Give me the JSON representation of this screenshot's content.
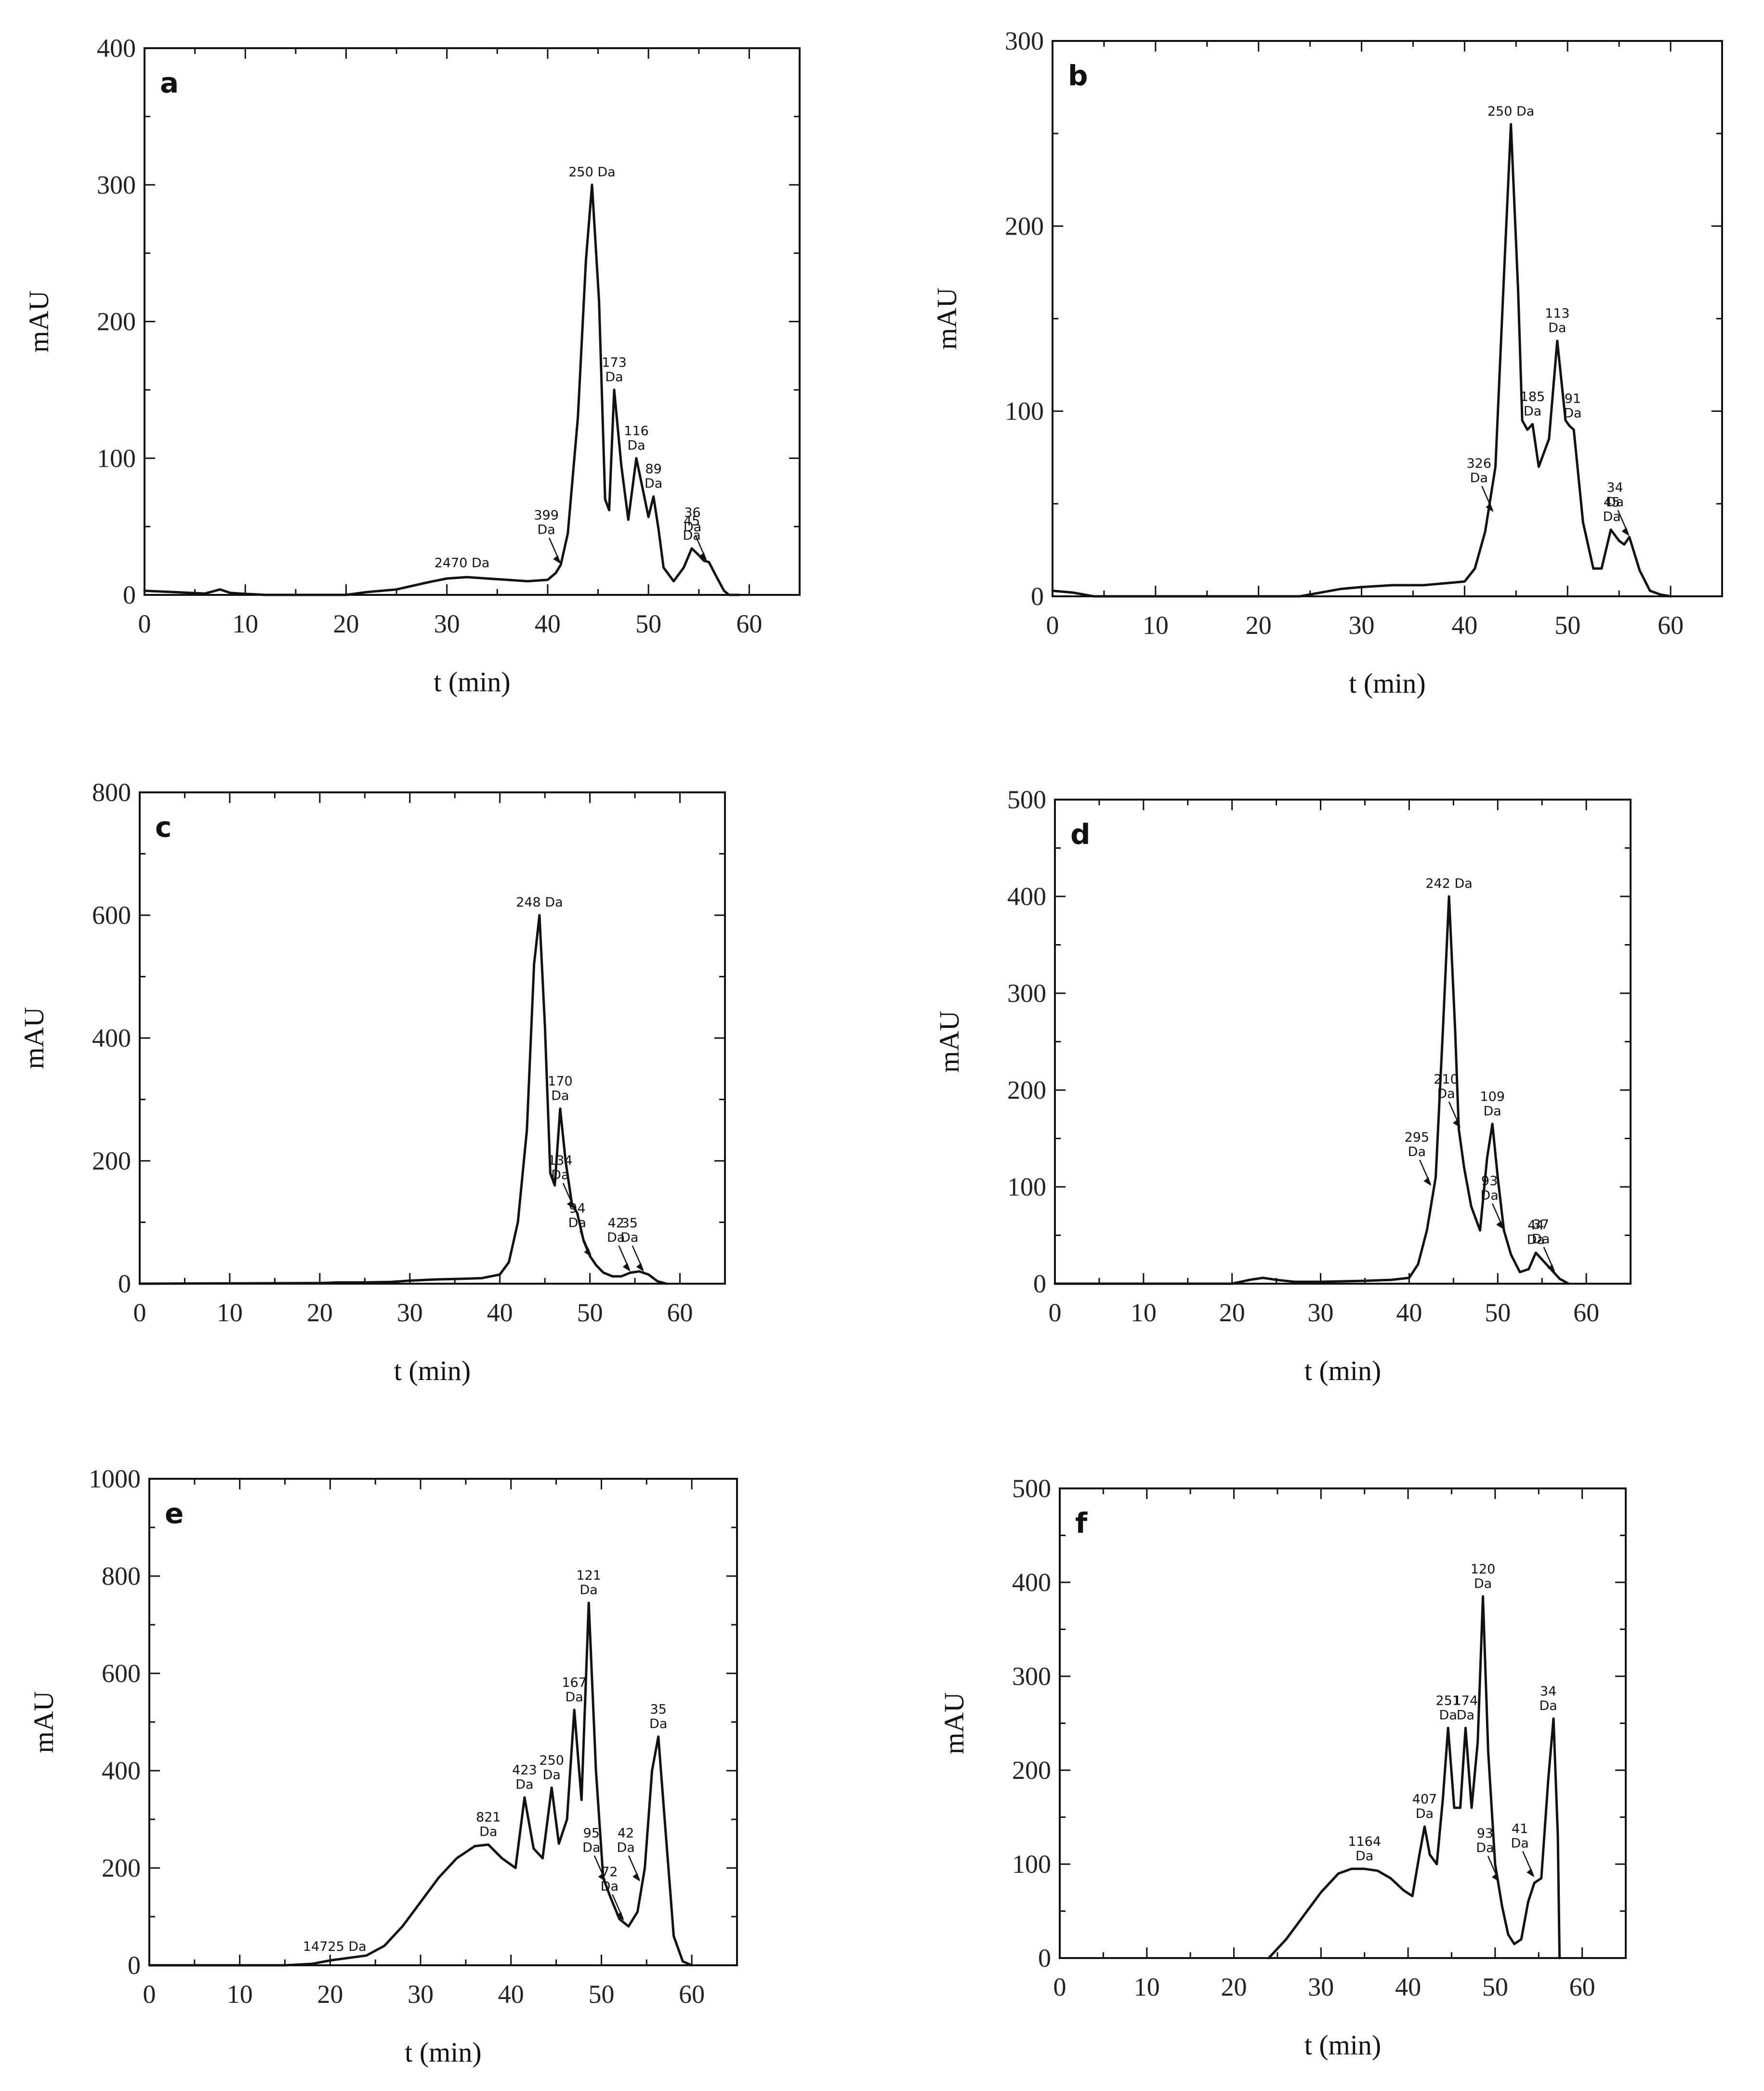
{
  "chart_data": [
    {
      "type": "line",
      "panel_label": "a",
      "xlabel": "t (min)",
      "ylabel": "mAU",
      "xlim": [
        0,
        65
      ],
      "ylim": [
        0,
        400
      ],
      "xticks": [
        0,
        10,
        20,
        30,
        40,
        50,
        60
      ],
      "yticks": [
        0,
        100,
        200,
        300,
        400
      ],
      "series": [
        {
          "x": [
            0,
            3,
            6,
            7.5,
            8.5,
            9.5,
            12,
            20,
            22,
            25,
            28,
            30,
            32,
            34,
            36,
            38,
            40,
            40.8,
            41.3,
            42,
            43,
            43.8,
            44.4,
            45.1,
            45.7,
            46.1,
            46.6,
            47.3,
            48,
            48.8,
            49.5,
            50,
            50.5,
            51,
            51.5,
            52.5,
            53.5,
            54.3,
            55,
            55.5,
            56,
            56.7,
            57.5,
            58,
            59
          ],
          "y": [
            3,
            2,
            1,
            4,
            1.5,
            1,
            0,
            0,
            2,
            4,
            9,
            12,
            13,
            12,
            11,
            10,
            11,
            16,
            22,
            45,
            130,
            245,
            300,
            215,
            70,
            62,
            150,
            95,
            55,
            100,
            75,
            57,
            72,
            48,
            20,
            10,
            20,
            34,
            29,
            25,
            24,
            14,
            3,
            0,
            0
          ]
        }
      ],
      "annotations": [
        {
          "lines": [
            "250 Da"
          ],
          "x": 44.4,
          "y": 300
        },
        {
          "lines": [
            "2470 Da"
          ],
          "x": 31.5,
          "y": 14
        },
        {
          "lines": [
            "173",
            "Da"
          ],
          "x": 46.6,
          "y": 150
        },
        {
          "lines": [
            "116",
            "Da"
          ],
          "x": 48.8,
          "y": 100
        },
        {
          "lines": [
            "89",
            "Da"
          ],
          "x": 50.5,
          "y": 72
        },
        {
          "lines": [
            "45",
            "Da"
          ],
          "x": 54.3,
          "y": 34
        },
        {
          "lines": [
            "399",
            "Da"
          ],
          "x": 41.3,
          "y": 22,
          "arrow": true
        },
        {
          "lines": [
            "36",
            "Da"
          ],
          "x": 55.8,
          "y": 24,
          "arrow": true
        }
      ]
    },
    {
      "type": "line",
      "panel_label": "b",
      "xlabel": "t (min)",
      "ylabel": "mAU",
      "xlim": [
        0,
        65
      ],
      "ylim": [
        0,
        300
      ],
      "xticks": [
        0,
        10,
        20,
        30,
        40,
        50,
        60
      ],
      "yticks": [
        0,
        100,
        200,
        300
      ],
      "series": [
        {
          "x": [
            0,
            2,
            4,
            5,
            24,
            26,
            28,
            30,
            33,
            36,
            38,
            40,
            41,
            42,
            43,
            43.8,
            44.5,
            45.2,
            45.6,
            46.1,
            46.6,
            47.2,
            48.2,
            49,
            49.8,
            50.2,
            50.6,
            51.5,
            52.5,
            53.3,
            54.2,
            55,
            55.5,
            56,
            57,
            58,
            59,
            60
          ],
          "y": [
            3,
            2,
            0,
            0,
            0,
            2,
            4,
            5,
            6,
            6,
            7,
            8,
            15,
            35,
            70,
            170,
            255,
            165,
            95,
            90,
            93,
            70,
            85,
            138,
            95,
            92,
            90,
            40,
            15,
            15,
            36,
            30,
            28,
            32,
            14,
            3,
            1,
            0
          ]
        }
      ],
      "annotations": [
        {
          "lines": [
            "250 Da"
          ],
          "x": 44.5,
          "y": 255
        },
        {
          "lines": [
            "185",
            "Da"
          ],
          "x": 46.6,
          "y": 93
        },
        {
          "lines": [
            "113",
            "Da"
          ],
          "x": 49,
          "y": 138
        },
        {
          "lines": [
            "91",
            "Da"
          ],
          "x": 50.5,
          "y": 92
        },
        {
          "lines": [
            "45",
            "Da"
          ],
          "x": 54.3,
          "y": 36
        },
        {
          "lines": [
            "326",
            "Da"
          ],
          "x": 42.8,
          "y": 45,
          "arrow": true
        },
        {
          "lines": [
            "34",
            "Da"
          ],
          "x": 56,
          "y": 32,
          "arrow": true
        }
      ]
    },
    {
      "type": "line",
      "panel_label": "c",
      "xlabel": "t (min)",
      "ylabel": "mAU",
      "xlim": [
        0,
        65
      ],
      "ylim": [
        0,
        800
      ],
      "xticks": [
        0,
        10,
        20,
        30,
        40,
        50,
        60
      ],
      "yticks": [
        0,
        200,
        400,
        600,
        800
      ],
      "series": [
        {
          "x": [
            0,
            20,
            22,
            25,
            28,
            30,
            33,
            36,
            38,
            40,
            41,
            42,
            43,
            43.8,
            44.4,
            45,
            45.6,
            46.1,
            46.7,
            47.3,
            48,
            48.6,
            49.3,
            50,
            50.7,
            51.5,
            52.5,
            53.5,
            54.5,
            55.5,
            56.5,
            57.5,
            58.5
          ],
          "y": [
            0,
            1,
            2,
            2,
            3,
            5,
            7,
            8,
            9,
            15,
            35,
            100,
            250,
            520,
            600,
            420,
            180,
            160,
            285,
            200,
            130,
            115,
            70,
            45,
            30,
            18,
            12,
            12,
            18,
            20,
            15,
            4,
            0
          ]
        }
      ],
      "annotations": [
        {
          "lines": [
            "248 Da"
          ],
          "x": 44.4,
          "y": 600
        },
        {
          "lines": [
            "170",
            "Da"
          ],
          "x": 46.7,
          "y": 285
        },
        {
          "lines": [
            "134",
            "Da"
          ],
          "x": 48.3,
          "y": 120,
          "arrow": true
        },
        {
          "lines": [
            "94",
            "Da"
          ],
          "x": 50.2,
          "y": 42,
          "arrow": true
        },
        {
          "lines": [
            "42",
            "Da"
          ],
          "x": 54.5,
          "y": 18,
          "arrow": true
        },
        {
          "lines": [
            "35",
            "Da"
          ],
          "x": 56,
          "y": 18,
          "arrow": true
        }
      ]
    },
    {
      "type": "line",
      "panel_label": "d",
      "xlabel": "t (min)",
      "ylabel": "mAU",
      "xlim": [
        0,
        65
      ],
      "ylim": [
        0,
        500
      ],
      "xticks": [
        0,
        10,
        20,
        30,
        40,
        50,
        60
      ],
      "yticks": [
        0,
        100,
        200,
        300,
        400,
        500
      ],
      "series": [
        {
          "x": [
            0,
            20,
            22,
            23.5,
            25,
            27,
            30,
            35,
            38,
            40,
            41,
            42,
            43,
            43.8,
            44.5,
            45.2,
            45.6,
            46.2,
            47,
            48,
            48.8,
            49.4,
            50,
            50.7,
            51.5,
            52.5,
            53.5,
            54.3,
            55,
            56,
            57,
            58
          ],
          "y": [
            0,
            0,
            4,
            6,
            4,
            2,
            2,
            3,
            4,
            6,
            20,
            55,
            110,
            260,
            400,
            260,
            160,
            120,
            80,
            55,
            130,
            165,
            110,
            55,
            30,
            12,
            15,
            32,
            25,
            15,
            5,
            0
          ]
        }
      ],
      "annotations": [
        {
          "lines": [
            "242 Da"
          ],
          "x": 44.5,
          "y": 400
        },
        {
          "lines": [
            "210",
            "Da"
          ],
          "x": 45.8,
          "y": 160,
          "arrow": true
        },
        {
          "lines": [
            "109",
            "Da"
          ],
          "x": 49.4,
          "y": 165
        },
        {
          "lines": [
            "295",
            "Da"
          ],
          "x": 42.5,
          "y": 100,
          "arrow": true
        },
        {
          "lines": [
            "93",
            "Da"
          ],
          "x": 50.7,
          "y": 55,
          "arrow": true
        },
        {
          "lines": [
            "44",
            "Da"
          ],
          "x": 54.3,
          "y": 32
        },
        {
          "lines": [
            "37",
            "Da"
          ],
          "x": 56.5,
          "y": 10,
          "arrow": true
        }
      ]
    },
    {
      "type": "line",
      "panel_label": "e",
      "xlabel": "t (min)",
      "ylabel": "mAU",
      "xlim": [
        0,
        65
      ],
      "ylim": [
        0,
        1000
      ],
      "xticks": [
        0,
        10,
        20,
        30,
        40,
        50,
        60
      ],
      "yticks": [
        0,
        200,
        400,
        600,
        800,
        1000
      ],
      "series": [
        {
          "x": [
            0,
            15,
            18,
            20,
            22,
            24,
            26,
            28,
            30,
            32,
            34,
            36,
            37.5,
            39,
            40.5,
            41.5,
            42.5,
            43.5,
            44.5,
            45.3,
            46.2,
            47,
            47.8,
            48.6,
            49.4,
            50.2,
            51,
            52,
            53,
            54,
            54.8,
            55.6,
            56.3,
            57,
            58,
            59,
            60
          ],
          "y": [
            0,
            0,
            3,
            10,
            15,
            20,
            40,
            80,
            130,
            180,
            220,
            245,
            248,
            220,
            200,
            345,
            240,
            220,
            365,
            250,
            300,
            525,
            340,
            745,
            400,
            180,
            140,
            95,
            80,
            110,
            200,
            400,
            470,
            300,
            60,
            8,
            0
          ]
        }
      ],
      "annotations": [
        {
          "lines": [
            "14725 Da"
          ],
          "x": 20.5,
          "y": 12
        },
        {
          "lines": [
            "821",
            "Da"
          ],
          "x": 37.5,
          "y": 248
        },
        {
          "lines": [
            "423",
            "Da"
          ],
          "x": 41.5,
          "y": 345
        },
        {
          "lines": [
            "250",
            "Da"
          ],
          "x": 44.5,
          "y": 365
        },
        {
          "lines": [
            "167",
            "Da"
          ],
          "x": 47,
          "y": 525
        },
        {
          "lines": [
            "121",
            "Da"
          ],
          "x": 48.6,
          "y": 745
        },
        {
          "lines": [
            "35",
            "Da"
          ],
          "x": 56.3,
          "y": 470
        },
        {
          "lines": [
            "95",
            "Da"
          ],
          "x": 50.5,
          "y": 170,
          "arrow": true
        },
        {
          "lines": [
            "42",
            "Da"
          ],
          "x": 54.3,
          "y": 170,
          "arrow": true
        },
        {
          "lines": [
            "72",
            "Da"
          ],
          "x": 52.5,
          "y": 90,
          "arrow": true
        }
      ]
    },
    {
      "type": "line",
      "panel_label": "f",
      "xlabel": "t (min)",
      "ylabel": "mAU",
      "xlim": [
        0,
        65
      ],
      "ylim": [
        0,
        500
      ],
      "xticks": [
        0,
        10,
        20,
        30,
        40,
        50,
        60
      ],
      "yticks": [
        0,
        100,
        200,
        300,
        400,
        500
      ],
      "series": [
        {
          "x": [
            24,
            26,
            28,
            30,
            32,
            33.5,
            35,
            36.5,
            38,
            39.5,
            40.5,
            41.3,
            41.9,
            42.5,
            43.3,
            44,
            44.6,
            45.3,
            46,
            46.6,
            47.3,
            48,
            48.6,
            49.2,
            50,
            50.8,
            51.5,
            52.2,
            53,
            53.8,
            54.5,
            55.3,
            56.1,
            56.7,
            57.2,
            57.4
          ],
          "y": [
            0,
            20,
            45,
            70,
            90,
            95,
            95,
            93,
            85,
            72,
            66,
            110,
            140,
            110,
            100,
            170,
            245,
            160,
            160,
            245,
            160,
            230,
            385,
            220,
            100,
            55,
            25,
            15,
            20,
            60,
            80,
            85,
            190,
            255,
            130,
            0
          ]
        }
      ],
      "annotations": [
        {
          "lines": [
            "1164",
            "Da"
          ],
          "x": 35,
          "y": 95
        },
        {
          "lines": [
            "407",
            "Da"
          ],
          "x": 41.9,
          "y": 140
        },
        {
          "lines": [
            "251",
            "Da"
          ],
          "x": 44.6,
          "y": 245
        },
        {
          "lines": [
            "174",
            "Da"
          ],
          "x": 46.6,
          "y": 245
        },
        {
          "lines": [
            "120",
            "Da"
          ],
          "x": 48.6,
          "y": 385
        },
        {
          "lines": [
            "34",
            "Da"
          ],
          "x": 56.1,
          "y": 255
        },
        {
          "lines": [
            "93",
            "Da"
          ],
          "x": 50.5,
          "y": 80,
          "arrow": true
        },
        {
          "lines": [
            "41",
            "Da"
          ],
          "x": 54.5,
          "y": 85,
          "arrow": true
        }
      ]
    }
  ]
}
